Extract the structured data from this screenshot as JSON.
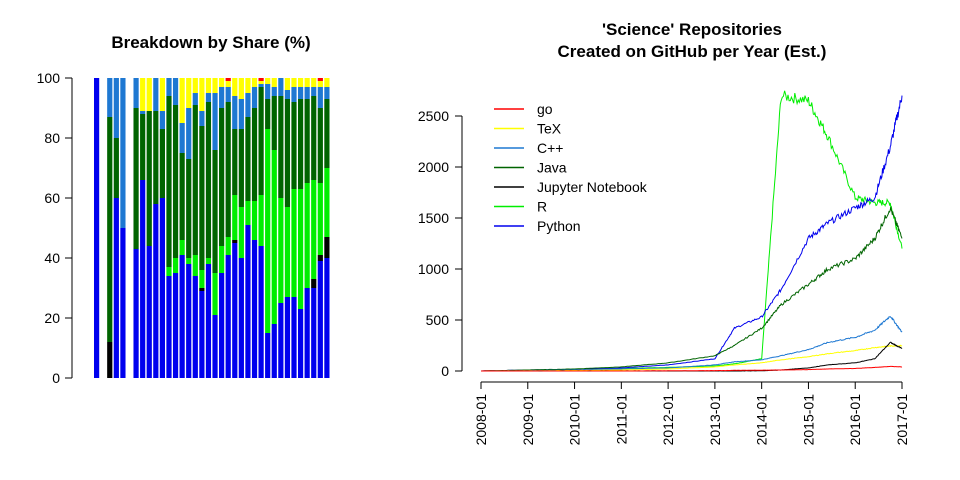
{
  "left_chart": {
    "title": "Breakdown by Share (%)",
    "y_ticks": [
      "0",
      "20",
      "40",
      "60",
      "80",
      "100"
    ]
  },
  "right_chart": {
    "title_line1": "'Science' Repositories",
    "title_line2": "Created on GitHub per Year (Est.)",
    "y_ticks": [
      "0",
      "500",
      "1000",
      "1500",
      "2000",
      "2500"
    ],
    "x_ticks": [
      "2008-01",
      "2009-01",
      "2010-01",
      "2011-01",
      "2012-01",
      "2013-01",
      "2014-01",
      "2015-01",
      "2016-01",
      "2017-01"
    ]
  },
  "legend": [
    "go",
    "TeX",
    "C++",
    "Java",
    "Jupyter Notebook",
    "R",
    "Python"
  ],
  "colors": {
    "go": "#ff0000",
    "TeX": "#ffff00",
    "C++": "#1e78d2",
    "Java": "#006400",
    "Jupyter Notebook": "#000000",
    "R": "#00ee00",
    "Python": "#0000ee"
  },
  "chart_data": [
    {
      "type": "bar",
      "stacked": true,
      "title": "Breakdown by Share (%)",
      "ylim": [
        0,
        100
      ],
      "series_order": [
        "Python",
        "Jupyter Notebook",
        "R",
        "Java",
        "C++",
        "TeX",
        "go"
      ],
      "bars": [
        {
          "Python": 100,
          "Jupyter Notebook": 0,
          "R": 0,
          "Java": 0,
          "C++": 0,
          "TeX": 0,
          "go": 0
        },
        {
          "Python": 0,
          "Jupyter Notebook": 0,
          "R": 0,
          "Java": 0,
          "C++": 0,
          "TeX": 0,
          "go": 0
        },
        {
          "Python": 0,
          "Jupyter Notebook": 12,
          "R": 0,
          "Java": 75,
          "C++": 13,
          "TeX": 0,
          "go": 0
        },
        {
          "Python": 60,
          "Jupyter Notebook": 0,
          "R": 0,
          "Java": 20,
          "C++": 20,
          "TeX": 0,
          "go": 0
        },
        {
          "Python": 50,
          "Jupyter Notebook": 0,
          "R": 0,
          "Java": 0,
          "C++": 50,
          "TeX": 0,
          "go": 0
        },
        {
          "Python": 0,
          "Jupyter Notebook": 0,
          "R": 0,
          "Java": 0,
          "C++": 0,
          "TeX": 0,
          "go": 0
        },
        {
          "Python": 43,
          "Jupyter Notebook": 0,
          "R": 0,
          "Java": 47,
          "C++": 10,
          "TeX": 0,
          "go": 0
        },
        {
          "Python": 66,
          "Jupyter Notebook": 0,
          "R": 0,
          "Java": 22,
          "C++": 1,
          "TeX": 11,
          "go": 0
        },
        {
          "Python": 44,
          "Jupyter Notebook": 0,
          "R": 0,
          "Java": 45,
          "C++": 0,
          "TeX": 11,
          "go": 0
        },
        {
          "Python": 58,
          "Jupyter Notebook": 0,
          "R": 0,
          "Java": 31,
          "C++": 11,
          "TeX": 0,
          "go": 0
        },
        {
          "Python": 60,
          "Jupyter Notebook": 0,
          "R": 0,
          "Java": 23,
          "C++": 6,
          "TeX": 11,
          "go": 0
        },
        {
          "Python": 34,
          "Jupyter Notebook": 0,
          "R": 3,
          "Java": 57,
          "C++": 6,
          "TeX": 0,
          "go": 0
        },
        {
          "Python": 35,
          "Jupyter Notebook": 0,
          "R": 5,
          "Java": 51,
          "C++": 9,
          "TeX": 0,
          "go": 0
        },
        {
          "Python": 41,
          "Jupyter Notebook": 0,
          "R": 5,
          "Java": 29,
          "C++": 10,
          "TeX": 15,
          "go": 0
        },
        {
          "Python": 38,
          "Jupyter Notebook": 0,
          "R": 2,
          "Java": 33,
          "C++": 17,
          "TeX": 10,
          "go": 0
        },
        {
          "Python": 34,
          "Jupyter Notebook": 0,
          "R": 7,
          "Java": 50,
          "C++": 4,
          "TeX": 5,
          "go": 0
        },
        {
          "Python": 29,
          "Jupyter Notebook": 1,
          "R": 6,
          "Java": 48,
          "C++": 5,
          "TeX": 11,
          "go": 0
        },
        {
          "Python": 38,
          "Jupyter Notebook": 0,
          "R": 2,
          "Java": 52,
          "C++": 3,
          "TeX": 5,
          "go": 0
        },
        {
          "Python": 21,
          "Jupyter Notebook": 0,
          "R": 14,
          "Java": 41,
          "C++": 19,
          "TeX": 5,
          "go": 0
        },
        {
          "Python": 35,
          "Jupyter Notebook": 0,
          "R": 9,
          "Java": 46,
          "C++": 7,
          "TeX": 3,
          "go": 0
        },
        {
          "Python": 41,
          "Jupyter Notebook": 0,
          "R": 6,
          "Java": 45,
          "C++": 5,
          "TeX": 2,
          "go": 1
        },
        {
          "Python": 45,
          "Jupyter Notebook": 1,
          "R": 15,
          "Java": 22,
          "C++": 11,
          "TeX": 6,
          "go": 0
        },
        {
          "Python": 40,
          "Jupyter Notebook": 0,
          "R": 17,
          "Java": 26,
          "C++": 10,
          "TeX": 7,
          "go": 0
        },
        {
          "Python": 51,
          "Jupyter Notebook": 0,
          "R": 8,
          "Java": 28,
          "C++": 8,
          "TeX": 5,
          "go": 0
        },
        {
          "Python": 46,
          "Jupyter Notebook": 0,
          "R": 13,
          "Java": 31,
          "C++": 7,
          "TeX": 3,
          "go": 0
        },
        {
          "Python": 44,
          "Jupyter Notebook": 0,
          "R": 17,
          "Java": 36,
          "C++": 1,
          "TeX": 1,
          "go": 1
        },
        {
          "Python": 15,
          "Jupyter Notebook": 0,
          "R": 68,
          "Java": 10,
          "C++": 5,
          "TeX": 2,
          "go": 0
        },
        {
          "Python": 18,
          "Jupyter Notebook": 0,
          "R": 58,
          "Java": 18,
          "C++": 3,
          "TeX": 3,
          "go": 0
        },
        {
          "Python": 25,
          "Jupyter Notebook": 0,
          "R": 35,
          "Java": 34,
          "C++": 6,
          "TeX": 0,
          "go": 0
        },
        {
          "Python": 27,
          "Jupyter Notebook": 0,
          "R": 30,
          "Java": 36,
          "C++": 3,
          "TeX": 4,
          "go": 0
        },
        {
          "Python": 27,
          "Jupyter Notebook": 0,
          "R": 36,
          "Java": 29,
          "C++": 5,
          "TeX": 3,
          "go": 0
        },
        {
          "Python": 23,
          "Jupyter Notebook": 0,
          "R": 40,
          "Java": 30,
          "C++": 4,
          "TeX": 3,
          "go": 0
        },
        {
          "Python": 30,
          "Jupyter Notebook": 0,
          "R": 35,
          "Java": 28,
          "C++": 4,
          "TeX": 3,
          "go": 0
        },
        {
          "Python": 30,
          "Jupyter Notebook": 3,
          "R": 33,
          "Java": 28,
          "C++": 3,
          "TeX": 3,
          "go": 0
        },
        {
          "Python": 39,
          "Jupyter Notebook": 2,
          "R": 24,
          "Java": 25,
          "C++": 7,
          "TeX": 2,
          "go": 1
        },
        {
          "Python": 40,
          "Jupyter Notebook": 7,
          "R": 23,
          "Java": 23,
          "C++": 4,
          "TeX": 3,
          "go": 0
        }
      ]
    },
    {
      "type": "line",
      "title": "'Science' Repositories Created on GitHub per Year (Est.)",
      "xlim": [
        "2008-01",
        "2017-01"
      ],
      "ylim": [
        0,
        2500
      ],
      "x": [
        "2008-01",
        "2009-01",
        "2010-01",
        "2011-01",
        "2012-01",
        "2013-01",
        "2013-06",
        "2014-01",
        "2014-06",
        "2015-01",
        "2015-06",
        "2016-01",
        "2016-06",
        "2016-10",
        "2017-01"
      ],
      "series": [
        {
          "name": "go",
          "values": [
            0,
            0,
            0,
            0,
            2,
            4,
            6,
            8,
            10,
            14,
            20,
            25,
            35,
            45,
            40
          ]
        },
        {
          "name": "TeX",
          "values": [
            0,
            2,
            5,
            10,
            20,
            40,
            60,
            80,
            110,
            140,
            170,
            200,
            230,
            245,
            250
          ]
        },
        {
          "name": "C++",
          "values": [
            0,
            3,
            10,
            20,
            30,
            60,
            90,
            110,
            150,
            210,
            280,
            330,
            400,
            540,
            380
          ]
        },
        {
          "name": "Java",
          "values": [
            0,
            10,
            20,
            40,
            80,
            150,
            250,
            420,
            650,
            850,
            1000,
            1100,
            1300,
            1600,
            1300
          ]
        },
        {
          "name": "Jupyter Notebook",
          "values": [
            0,
            0,
            0,
            0,
            0,
            0,
            0,
            2,
            10,
            30,
            60,
            80,
            120,
            280,
            220
          ]
        },
        {
          "name": "R",
          "values": [
            0,
            5,
            15,
            25,
            35,
            50,
            70,
            120,
            2700,
            2650,
            2300,
            1700,
            1650,
            1650,
            1200
          ]
        },
        {
          "name": "Python",
          "values": [
            0,
            10,
            15,
            30,
            60,
            120,
            420,
            530,
            800,
            1300,
            1450,
            1600,
            1700,
            2200,
            2700
          ]
        }
      ]
    }
  ]
}
